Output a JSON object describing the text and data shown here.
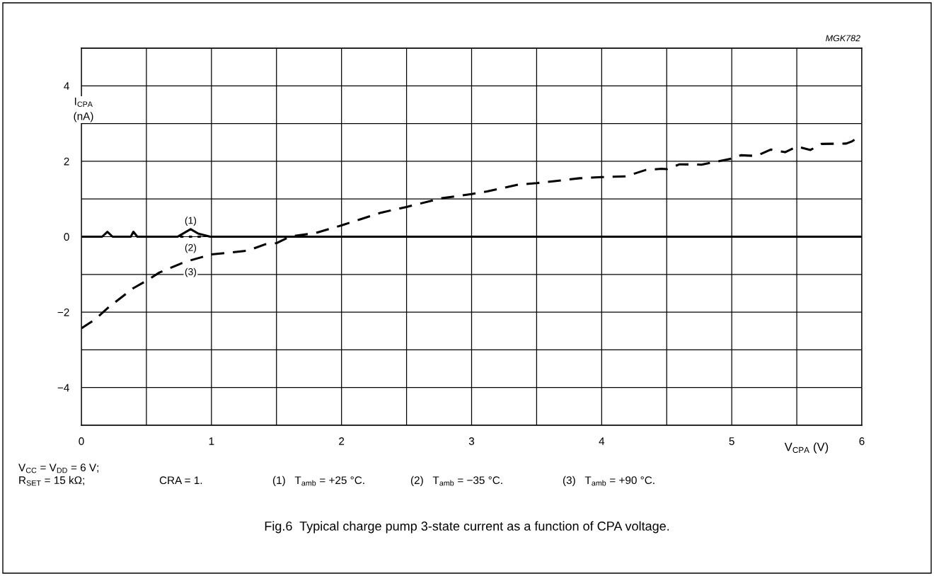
{
  "chart_data": {
    "type": "line",
    "title": "Fig.6  Typical charge pump 3-state current as a function of CPA voltage.",
    "xlabel": "V$_{CPA}$ (V)",
    "ylabel": "I$_{CPA}$\n(nA)",
    "series": [
      {
        "color": "#000000",
        "line_style": "solid",
        "x": [
          0,
          0.16,
          0.2,
          0.24,
          0.38,
          0.4,
          0.43,
          0.74,
          0.84,
          0.9,
          0.99,
          6
        ],
        "values": [
          0,
          0,
          0.13,
          0,
          0,
          0.13,
          0,
          0,
          0.2,
          0.08,
          0,
          0
        ]
      },
      {
        "color": "#000000",
        "line_style": "dotted",
        "x": [
          0.76,
          0.84,
          0.94
        ],
        "values": [
          0,
          0,
          0
        ]
      },
      {
        "color": "#000000",
        "line_style": "dashed",
        "x": [
          0,
          0.107,
          0.213,
          0.397,
          0.5,
          0.6,
          0.794,
          1.0,
          1.279,
          1.415,
          1.5,
          1.608,
          1.802,
          2.0,
          2.306,
          2.5,
          2.771,
          3.0,
          3.12,
          3.359,
          3.5,
          3.83,
          4.0,
          4.187,
          4.34,
          4.46,
          4.5,
          4.6,
          4.767,
          5.0,
          5.07,
          5.19,
          5.3,
          5.41,
          5.5,
          5.605,
          5.69,
          5.88,
          5.92,
          5.98
        ],
        "values": [
          -2.43,
          -2.19,
          -1.86,
          -1.37,
          -1.17,
          -0.95,
          -0.67,
          -0.47,
          -0.37,
          -0.2,
          -0.17,
          0.01,
          0.1,
          0.3,
          0.64,
          0.79,
          1.02,
          1.13,
          1.2,
          1.38,
          1.42,
          1.55,
          1.58,
          1.6,
          1.77,
          1.8,
          1.79,
          1.92,
          1.91,
          2.07,
          2.16,
          2.14,
          2.31,
          2.24,
          2.39,
          2.3,
          2.46,
          2.47,
          2.52,
          2.65
        ]
      }
    ],
    "xlim": [
      0,
      6
    ],
    "ylim": [
      -5,
      5
    ],
    "xticks": [
      0,
      {
        "value": 0.5,
        "label": null
      },
      1,
      {
        "value": 1.5,
        "label": null
      },
      2,
      {
        "value": 2.5,
        "label": null
      },
      3,
      {
        "value": 3.5,
        "label": null
      },
      4,
      {
        "value": 4.5,
        "label": null
      },
      5,
      {
        "value": 5.5,
        "label": null
      },
      6
    ],
    "yticks": [
      {
        "value": -5,
        "label": null
      },
      {
        "value": -4,
        "label": "−4"
      },
      {
        "value": -3,
        "label": null
      },
      {
        "value": -2,
        "label": "−2"
      },
      {
        "value": -1,
        "label": null
      },
      0,
      {
        "value": 1,
        "label": null
      },
      2,
      {
        "value": 3,
        "label": null
      },
      4,
      {
        "value": 5,
        "label": null
      }
    ],
    "grid": true,
    "legend": false,
    "annotations": [
      "(1)",
      "(2)",
      "(3)",
      "MGK782",
      "V$_{CC}$ = V$_{DD}$ = 6 V;",
      "R$_{SET}$ = 15 kΩ;",
      "CRA = 1.",
      "(1)   T$_{amb}$ = +25 °C.",
      "(2)   T$_{amb}$ = −35 °C.",
      "(3)   T$_{amb}$ = +90 °C."
    ]
  }
}
